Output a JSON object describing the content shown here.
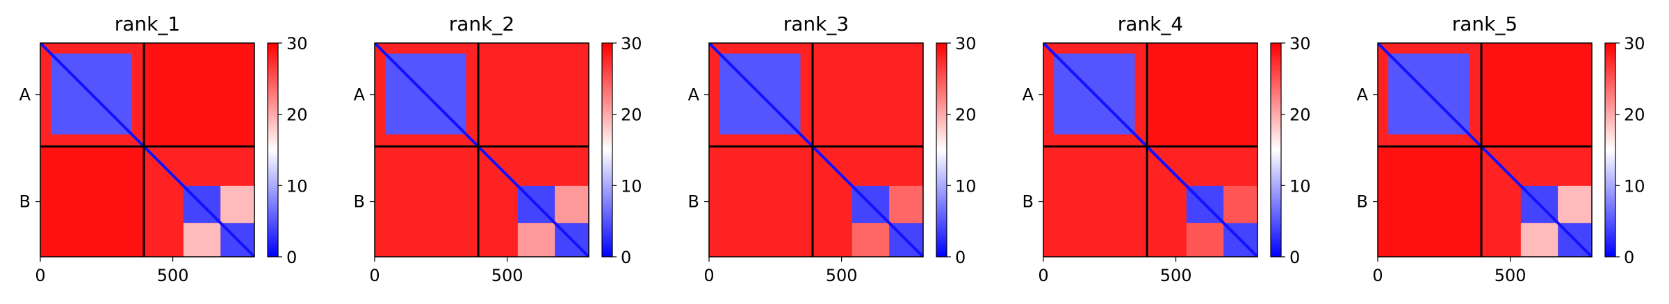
{
  "chart_data": [
    {
      "type": "heatmap",
      "title": "rank_1",
      "colormap": [
        "#0000ff",
        "#ffffff",
        "#ff0000"
      ],
      "value_range": [
        0,
        30
      ],
      "colorbar_ticks": [
        "0",
        "10",
        "20",
        "30"
      ],
      "x_ticks": [
        {
          "value": 0,
          "label": "0"
        },
        {
          "value": 500,
          "label": "500"
        }
      ],
      "x_range": [
        0,
        808
      ],
      "y_tick_labels": [
        "A",
        "B"
      ],
      "chain_boundary": 391,
      "blocks": [
        {
          "x": [
            0,
            391
          ],
          "y": [
            0,
            391
          ],
          "value": 28
        },
        {
          "x": [
            391,
            808
          ],
          "y": [
            391,
            808
          ],
          "value": 28
        },
        {
          "x": [
            0,
            391
          ],
          "y": [
            391,
            808
          ],
          "value": 29
        },
        {
          "x": [
            391,
            808
          ],
          "y": [
            0,
            391
          ],
          "value": 29
        },
        {
          "x": [
            40,
            345
          ],
          "y": [
            40,
            345
          ],
          "value": 5
        },
        {
          "x": [
            540,
            680
          ],
          "y": [
            540,
            680
          ],
          "value": 4
        },
        {
          "x": [
            680,
            808
          ],
          "y": [
            680,
            808
          ],
          "value": 4
        },
        {
          "x": [
            540,
            680
          ],
          "y": [
            680,
            808
          ],
          "value": 19
        },
        {
          "x": [
            680,
            808
          ],
          "y": [
            540,
            680
          ],
          "value": 19
        }
      ],
      "diagonal_value": 1
    },
    {
      "type": "heatmap",
      "title": "rank_2",
      "colormap": [
        "#0000ff",
        "#ffffff",
        "#ff0000"
      ],
      "value_range": [
        0,
        30
      ],
      "colorbar_ticks": [
        "0",
        "10",
        "20",
        "30"
      ],
      "x_ticks": [
        {
          "value": 0,
          "label": "0"
        },
        {
          "value": 500,
          "label": "500"
        }
      ],
      "x_range": [
        0,
        808
      ],
      "y_tick_labels": [
        "A",
        "B"
      ],
      "chain_boundary": 391,
      "blocks": [
        {
          "x": [
            0,
            391
          ],
          "y": [
            0,
            391
          ],
          "value": 28
        },
        {
          "x": [
            391,
            808
          ],
          "y": [
            391,
            808
          ],
          "value": 28
        },
        {
          "x": [
            0,
            391
          ],
          "y": [
            391,
            808
          ],
          "value": 28
        },
        {
          "x": [
            391,
            808
          ],
          "y": [
            0,
            391
          ],
          "value": 28
        },
        {
          "x": [
            40,
            345
          ],
          "y": [
            40,
            345
          ],
          "value": 5
        },
        {
          "x": [
            540,
            680
          ],
          "y": [
            540,
            680
          ],
          "value": 4
        },
        {
          "x": [
            680,
            808
          ],
          "y": [
            680,
            808
          ],
          "value": 4
        },
        {
          "x": [
            540,
            680
          ],
          "y": [
            680,
            808
          ],
          "value": 21
        },
        {
          "x": [
            680,
            808
          ],
          "y": [
            540,
            680
          ],
          "value": 21
        }
      ],
      "diagonal_value": 1
    },
    {
      "type": "heatmap",
      "title": "rank_3",
      "colormap": [
        "#0000ff",
        "#ffffff",
        "#ff0000"
      ],
      "value_range": [
        0,
        30
      ],
      "colorbar_ticks": [
        "0",
        "10",
        "20",
        "30"
      ],
      "x_ticks": [
        {
          "value": 0,
          "label": "0"
        },
        {
          "value": 500,
          "label": "500"
        }
      ],
      "x_range": [
        0,
        808
      ],
      "y_tick_labels": [
        "A",
        "B"
      ],
      "chain_boundary": 391,
      "blocks": [
        {
          "x": [
            0,
            391
          ],
          "y": [
            0,
            391
          ],
          "value": 28
        },
        {
          "x": [
            391,
            808
          ],
          "y": [
            391,
            808
          ],
          "value": 28
        },
        {
          "x": [
            0,
            391
          ],
          "y": [
            391,
            808
          ],
          "value": 28
        },
        {
          "x": [
            391,
            808
          ],
          "y": [
            0,
            391
          ],
          "value": 28
        },
        {
          "x": [
            40,
            345
          ],
          "y": [
            40,
            345
          ],
          "value": 5
        },
        {
          "x": [
            540,
            680
          ],
          "y": [
            540,
            680
          ],
          "value": 4
        },
        {
          "x": [
            680,
            808
          ],
          "y": [
            680,
            808
          ],
          "value": 4
        },
        {
          "x": [
            540,
            680
          ],
          "y": [
            680,
            808
          ],
          "value": 24
        },
        {
          "x": [
            680,
            808
          ],
          "y": [
            540,
            680
          ],
          "value": 24
        }
      ],
      "diagonal_value": 1
    },
    {
      "type": "heatmap",
      "title": "rank_4",
      "colormap": [
        "#0000ff",
        "#ffffff",
        "#ff0000"
      ],
      "value_range": [
        0,
        30
      ],
      "colorbar_ticks": [
        "0",
        "10",
        "20",
        "30"
      ],
      "x_ticks": [
        {
          "value": 0,
          "label": "0"
        },
        {
          "value": 500,
          "label": "500"
        }
      ],
      "x_range": [
        0,
        808
      ],
      "y_tick_labels": [
        "A",
        "B"
      ],
      "chain_boundary": 391,
      "blocks": [
        {
          "x": [
            0,
            391
          ],
          "y": [
            0,
            391
          ],
          "value": 28
        },
        {
          "x": [
            391,
            808
          ],
          "y": [
            391,
            808
          ],
          "value": 28
        },
        {
          "x": [
            0,
            391
          ],
          "y": [
            391,
            808
          ],
          "value": 28
        },
        {
          "x": [
            391,
            808
          ],
          "y": [
            0,
            391
          ],
          "value": 29
        },
        {
          "x": [
            40,
            345
          ],
          "y": [
            40,
            345
          ],
          "value": 5
        },
        {
          "x": [
            540,
            680
          ],
          "y": [
            540,
            680
          ],
          "value": 4
        },
        {
          "x": [
            680,
            808
          ],
          "y": [
            680,
            808
          ],
          "value": 4
        },
        {
          "x": [
            540,
            680
          ],
          "y": [
            680,
            808
          ],
          "value": 25
        },
        {
          "x": [
            680,
            808
          ],
          "y": [
            540,
            680
          ],
          "value": 25
        }
      ],
      "diagonal_value": 1
    },
    {
      "type": "heatmap",
      "title": "rank_5",
      "colormap": [
        "#0000ff",
        "#ffffff",
        "#ff0000"
      ],
      "value_range": [
        0,
        30
      ],
      "colorbar_ticks": [
        "0",
        "10",
        "20",
        "30"
      ],
      "x_ticks": [
        {
          "value": 0,
          "label": "0"
        },
        {
          "value": 500,
          "label": "500"
        }
      ],
      "x_range": [
        0,
        808
      ],
      "y_tick_labels": [
        "A",
        "B"
      ],
      "chain_boundary": 391,
      "blocks": [
        {
          "x": [
            0,
            391
          ],
          "y": [
            0,
            391
          ],
          "value": 28
        },
        {
          "x": [
            391,
            808
          ],
          "y": [
            391,
            808
          ],
          "value": 28
        },
        {
          "x": [
            0,
            391
          ],
          "y": [
            391,
            808
          ],
          "value": 29
        },
        {
          "x": [
            391,
            808
          ],
          "y": [
            0,
            391
          ],
          "value": 29
        },
        {
          "x": [
            40,
            345
          ],
          "y": [
            40,
            345
          ],
          "value": 5
        },
        {
          "x": [
            540,
            680
          ],
          "y": [
            540,
            680
          ],
          "value": 4
        },
        {
          "x": [
            680,
            808
          ],
          "y": [
            680,
            808
          ],
          "value": 4
        },
        {
          "x": [
            540,
            680
          ],
          "y": [
            680,
            808
          ],
          "value": 19
        },
        {
          "x": [
            680,
            808
          ],
          "y": [
            540,
            680
          ],
          "value": 19
        }
      ],
      "diagonal_value": 1
    }
  ]
}
